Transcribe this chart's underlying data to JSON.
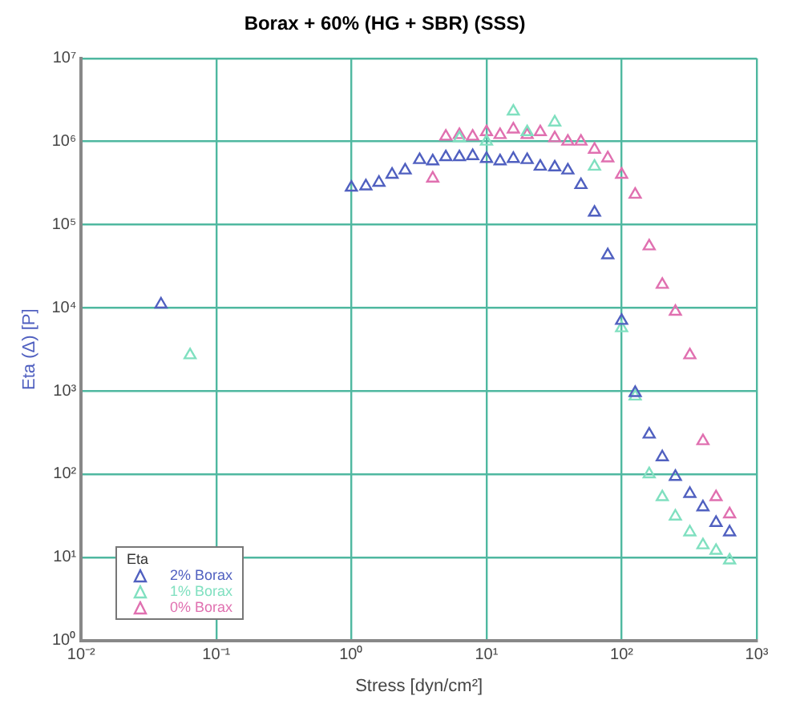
{
  "chart_data": {
    "type": "scatter",
    "title": "Borax + 60% (HG + SBR) (SSS)",
    "xlabel": "Stress [dyn/cm²]",
    "ylabel": "Eta (Δ) [P]",
    "legend_title": "Eta",
    "log": "xy",
    "grid": true,
    "legend": "bottom left",
    "marker": "triangle",
    "xlim": [
      0.01,
      1000
    ],
    "ylim": [
      1,
      10000000
    ],
    "xticks": [
      {
        "value": 0.01,
        "label": "10⁻²"
      },
      {
        "value": 0.1,
        "label": "10⁻¹"
      },
      {
        "value": 1,
        "label": "10⁰"
      },
      {
        "value": 10,
        "label": "10¹"
      },
      {
        "value": 100,
        "label": "10²"
      },
      {
        "value": 1000,
        "label": "10³"
      }
    ],
    "yticks": [
      {
        "value": 1,
        "label": "10⁰"
      },
      {
        "value": 10,
        "label": "10¹"
      },
      {
        "value": 100,
        "label": "10²"
      },
      {
        "value": 1000,
        "label": "10³"
      },
      {
        "value": 10000,
        "label": "10⁴"
      },
      {
        "value": 100000,
        "label": "10⁵"
      },
      {
        "value": 1000000,
        "label": "10⁶"
      },
      {
        "value": 10000000,
        "label": "10⁷"
      }
    ],
    "series": [
      {
        "name": "2% Borax",
        "color": "#5060c0",
        "x": [
          0.039,
          1,
          1.28,
          1.6,
          2,
          2.5,
          3.2,
          4,
          5,
          6.3,
          7.9,
          10,
          12.6,
          15.8,
          20,
          25,
          32,
          40,
          50,
          63,
          79,
          100,
          126,
          160,
          200,
          250,
          320,
          400,
          500,
          630
        ],
        "values": [
          11000,
          280000,
          290000,
          320000,
          400000,
          450000,
          600000,
          580000,
          650000,
          650000,
          670000,
          620000,
          580000,
          620000,
          600000,
          500000,
          490000,
          450000,
          300000,
          140000,
          43000,
          7000,
          950,
          300,
          160,
          93,
          58,
          40,
          26,
          20
        ]
      },
      {
        "name": "1% Borax",
        "color": "#80e0c0",
        "x": [
          0.064,
          6.3,
          10,
          12.6,
          15.8,
          20,
          32,
          63,
          100,
          126,
          160,
          200,
          250,
          320,
          400,
          500,
          630
        ],
        "values": [
          2700,
          1100000,
          1000000,
          null,
          2300000,
          1300000,
          1700000,
          500000,
          5700,
          860,
          100,
          53,
          31,
          20,
          14,
          12,
          9.2
        ]
      },
      {
        "name": "0% Borax",
        "color": "#e070b0",
        "x": [
          4,
          5,
          6.3,
          7.9,
          10,
          12.6,
          15.8,
          20,
          25,
          32,
          40,
          50,
          63,
          79,
          100,
          126,
          160,
          200,
          250,
          320,
          400,
          500,
          630
        ],
        "values": [
          360000,
          1150000,
          1200000,
          1150000,
          1300000,
          1200000,
          1400000,
          1200000,
          1300000,
          1100000,
          1000000,
          1000000,
          800000,
          630000,
          400000,
          230000,
          55000,
          19000,
          9000,
          2700,
          250,
          53,
          33
        ]
      }
    ]
  }
}
